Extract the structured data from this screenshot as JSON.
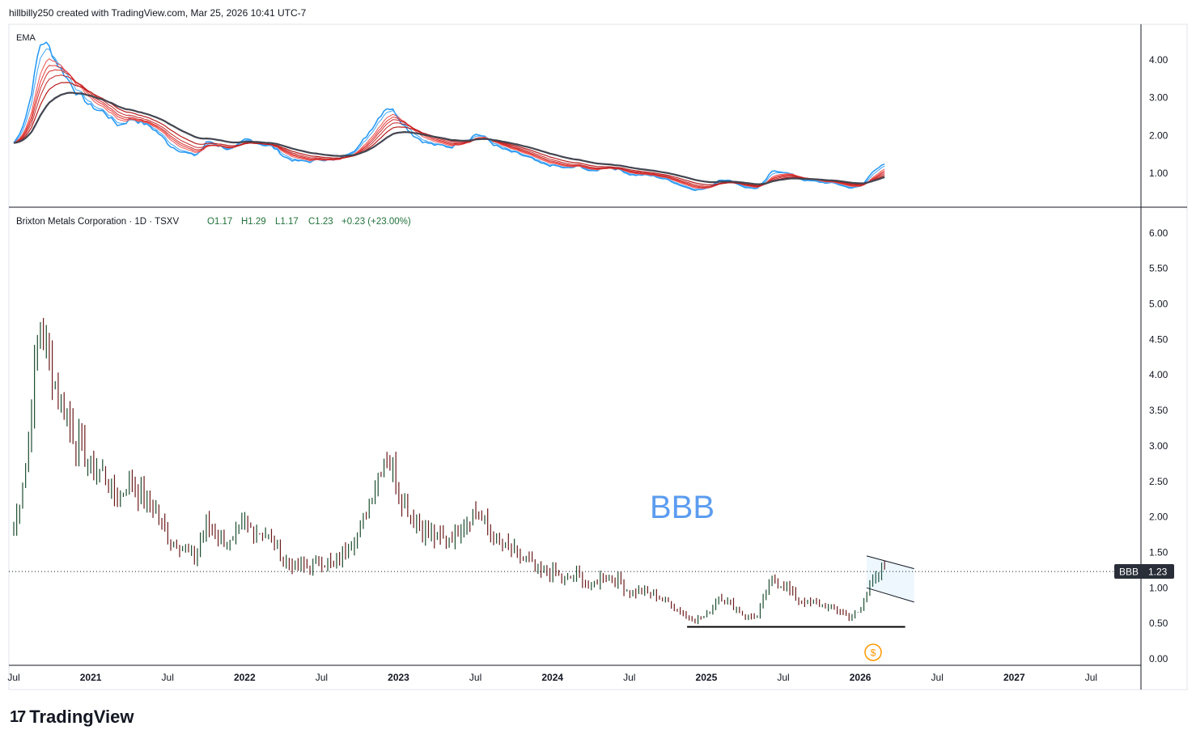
{
  "header": {
    "credit": "hillbilly250 created with TradingView.com, Mar 25, 2026 10:41 UTC-7"
  },
  "brand": {
    "name": "TradingView"
  },
  "chart_data": [
    {
      "type": "line",
      "title": "EMA",
      "description_series": "EMA ribbon of price",
      "yticks": [
        "1.00",
        "2.00",
        "3.00",
        "4.00"
      ],
      "ylim": [
        0.0,
        4.6
      ]
    },
    {
      "type": "candlestick",
      "title": "Brixton Metals Corporation · 1D · TSXV",
      "ohlc": {
        "O": "O1.17",
        "H": "H1.29",
        "L": "L1.17",
        "C": "C1.23",
        "change": "+0.23 (+23.00%)"
      },
      "symbol": "BBB",
      "last_price": "1.23",
      "annotation": "BBB",
      "ylim": [
        0.0,
        6.0
      ],
      "yticks": [
        "0.00",
        "0.50",
        "1.00",
        "1.50",
        "2.00",
        "2.50",
        "3.00",
        "3.50",
        "4.00",
        "4.50",
        "5.00",
        "5.50",
        "6.00"
      ],
      "xticks": [
        "Jul",
        "2021",
        "Jul",
        "2022",
        "Jul",
        "2023",
        "Jul",
        "2024",
        "Jul",
        "2025",
        "Jul",
        "2026",
        "Jul",
        "2027",
        "Jul"
      ],
      "x_start": "2020-07",
      "monthly_close_approx": [
        1.8,
        2.8,
        4.8,
        4.0,
        3.5,
        3.0,
        2.7,
        2.6,
        2.2,
        2.5,
        2.3,
        2.1,
        1.7,
        1.6,
        1.4,
        1.9,
        1.7,
        1.6,
        1.9,
        1.8,
        1.7,
        1.4,
        1.3,
        1.3,
        1.4,
        1.3,
        1.6,
        1.8,
        2.4,
        2.9,
        2.4,
        2.0,
        1.8,
        1.7,
        1.7,
        1.9,
        2.1,
        1.8,
        1.6,
        1.5,
        1.4,
        1.2,
        1.2,
        1.1,
        1.2,
        1.0,
        1.2,
        1.1,
        0.95,
        0.95,
        0.9,
        0.8,
        0.65,
        0.55,
        0.6,
        0.9,
        0.75,
        0.6,
        0.6,
        1.1,
        1.05,
        0.85,
        0.78,
        0.75,
        0.72,
        0.6,
        0.65,
        1.2,
        1.23
      ],
      "support_level": 0.45,
      "channel": {
        "upper": [
          1.45,
          1.27
        ],
        "lower": [
          1.0,
          0.8
        ],
        "from": "2026-01",
        "to": "2026-04"
      }
    }
  ]
}
